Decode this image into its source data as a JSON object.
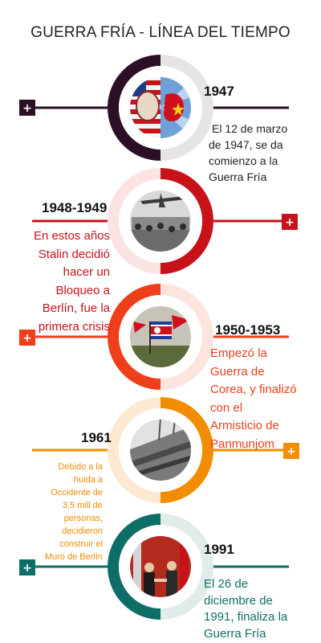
{
  "title": "GUERRA FRÍA - LÍNEA DEL TIEMPO",
  "colors": {
    "purple": "#2b0f26",
    "darkred": "#c8121a",
    "orange": "#ee3e1a",
    "amber": "#f28c00",
    "teal": "#0d6e66"
  },
  "events": [
    {
      "year": "1947",
      "text_lines": [
        "El 12 de marzo",
        "de 1947, se da",
        "comienzo a la",
        "Guerra Fría"
      ],
      "icon": "plus-icon"
    },
    {
      "year": "1948-1949",
      "text_lines": [
        "En estos años",
        "Stalin decidió",
        "hacer un",
        "Bloqueo a",
        "Berlín, fue la",
        "primera crisis"
      ],
      "icon": "plus-icon"
    },
    {
      "year": "1950-1953",
      "text_lines": [
        "Empezó la",
        "Guerra de",
        "Corea, y finalizó",
        "con el",
        "Armisticio de",
        "Panmunjom"
      ],
      "icon": "plus-icon"
    },
    {
      "year": "1961",
      "text_lines": [
        "Debido a la",
        "huida a",
        "Occidente de",
        "3,5 mill de",
        "personas,",
        "decidieron",
        "construir el",
        "Muro de Berlín"
      ],
      "icon": "plus-icon"
    },
    {
      "year": "1991",
      "text_lines": [
        "El 26 de",
        "diciembre de",
        "1991, finaliza la",
        "Guerra Fría"
      ],
      "icon": "plus-icon"
    }
  ]
}
